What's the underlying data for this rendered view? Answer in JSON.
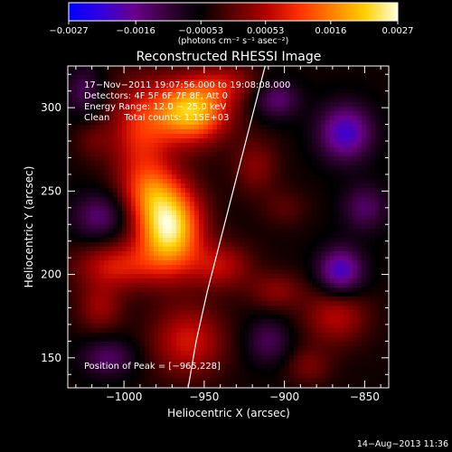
{
  "chart_data": {
    "type": "heatmap",
    "title": "Reconstructed RHESSI Image",
    "xlabel": "Heliocentric X (arcsec)",
    "ylabel": "Heliocentric Y (arcsec)",
    "xlim": [
      -1035,
      -835
    ],
    "ylim": [
      132,
      325
    ],
    "x_ticks": [
      -1000,
      -950,
      -900,
      -850
    ],
    "x_tick_labels": [
      "−1000",
      "−950",
      "−900",
      "−850"
    ],
    "y_ticks": [
      150,
      200,
      250,
      300
    ],
    "y_tick_labels": [
      "150",
      "200",
      "250",
      "300"
    ],
    "colorbar": {
      "range": [
        -0.0027,
        0.0027
      ],
      "tick_values": [
        -0.0027,
        -0.0016,
        -0.00053,
        0.00053,
        0.0016,
        0.0027
      ],
      "tick_labels": [
        "−0.0027",
        "−0.0016",
        "−0.00053",
        "0.00053",
        "0.0016",
        "0.0027"
      ],
      "units_label": "(photons cm⁻² s⁻¹ asec⁻²)",
      "colors": [
        "#0000ff",
        "#3300dd",
        "#6a008a",
        "#350038",
        "#000000",
        "#5a0000",
        "#b20000",
        "#ff3000",
        "#ff8000",
        "#ffd000",
        "#ffffe0"
      ]
    },
    "annotations": [
      "17−Nov−2011 19:07:56.000 to 19:08:08.000",
      "Detectors: 4F 5F 6F 7F 8F, Att 0",
      "Energy Range: 12.0 − 25.0 keV",
      "Clean     Total counts: 1.15E+03"
    ],
    "peak_label": "Position of Peak = [−965,228]",
    "peak": [
      -965,
      228
    ],
    "limb_curve": [
      [
        -960,
        132
      ],
      [
        -955,
        160
      ],
      [
        -948,
        190
      ],
      [
        -940,
        220
      ],
      [
        -932,
        250
      ],
      [
        -924,
        280
      ],
      [
        -916,
        310
      ],
      [
        -912,
        325
      ]
    ],
    "sources": [
      {
        "x": -972,
        "y": 228,
        "amp": 0.003,
        "sx": 14,
        "sy": 18
      },
      {
        "x": -958,
        "y": 298,
        "amp": 0.0026,
        "sx": 16,
        "sy": 13
      },
      {
        "x": -990,
        "y": 285,
        "amp": 0.0013,
        "sx": 14,
        "sy": 22
      },
      {
        "x": -985,
        "y": 250,
        "amp": 0.001,
        "sx": 12,
        "sy": 12
      },
      {
        "x": -1005,
        "y": 205,
        "amp": 0.0012,
        "sx": 18,
        "sy": 10
      },
      {
        "x": -940,
        "y": 205,
        "amp": 0.001,
        "sx": 14,
        "sy": 10
      },
      {
        "x": -960,
        "y": 160,
        "amp": 0.0012,
        "sx": 16,
        "sy": 15
      },
      {
        "x": -1015,
        "y": 180,
        "amp": 0.0008,
        "sx": 10,
        "sy": 10
      },
      {
        "x": -918,
        "y": 265,
        "amp": 0.0007,
        "sx": 10,
        "sy": 12
      },
      {
        "x": -905,
        "y": 190,
        "amp": 0.0007,
        "sx": 12,
        "sy": 8
      },
      {
        "x": -868,
        "y": 175,
        "amp": 0.001,
        "sx": 14,
        "sy": 12
      },
      {
        "x": -885,
        "y": 145,
        "amp": 0.0006,
        "sx": 10,
        "sy": 8
      },
      {
        "x": -935,
        "y": 315,
        "amp": 0.0008,
        "sx": 14,
        "sy": 8
      },
      {
        "x": -900,
        "y": 240,
        "amp": 0.0004,
        "sx": 10,
        "sy": 8
      },
      {
        "x": -1020,
        "y": 280,
        "amp": 0.0004,
        "sx": 8,
        "sy": 8
      },
      {
        "x": -862,
        "y": 285,
        "amp": -0.0016,
        "sx": 12,
        "sy": 12
      },
      {
        "x": -865,
        "y": 202,
        "amp": -0.0016,
        "sx": 10,
        "sy": 10
      },
      {
        "x": -905,
        "y": 305,
        "amp": -0.001,
        "sx": 10,
        "sy": 8
      },
      {
        "x": -1015,
        "y": 235,
        "amp": -0.001,
        "sx": 12,
        "sy": 10
      },
      {
        "x": -1010,
        "y": 150,
        "amp": -0.0009,
        "sx": 12,
        "sy": 8
      },
      {
        "x": -910,
        "y": 160,
        "amp": -0.0008,
        "sx": 10,
        "sy": 10
      },
      {
        "x": -850,
        "y": 240,
        "amp": -0.0009,
        "sx": 10,
        "sy": 10
      },
      {
        "x": -1025,
        "y": 310,
        "amp": -0.0008,
        "sx": 8,
        "sy": 10
      }
    ],
    "background_level": -0.00045
  },
  "timestamp": "14−Aug−2013 11:36"
}
